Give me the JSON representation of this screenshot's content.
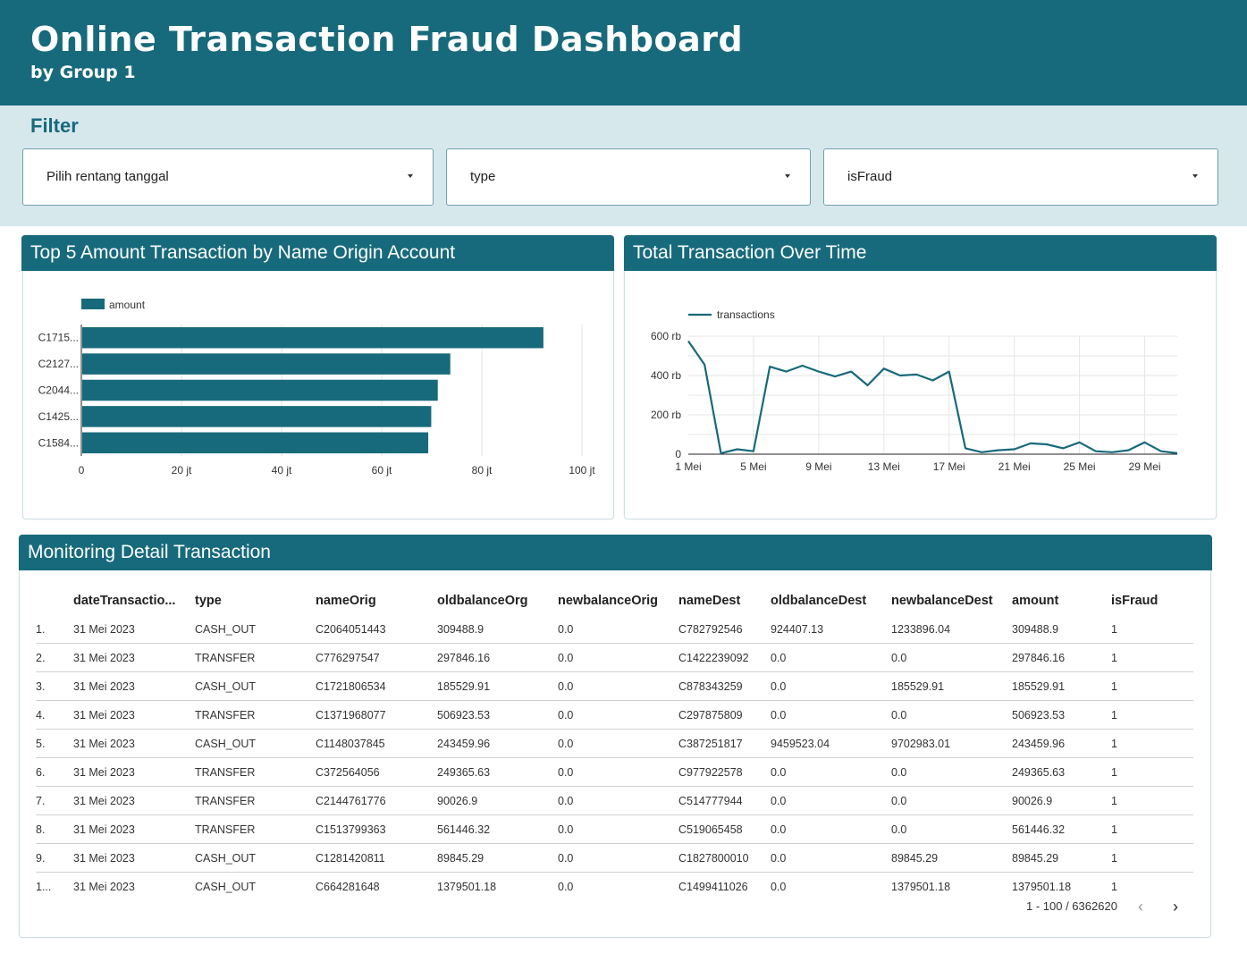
{
  "header": {
    "title": "Online Transaction Fraud Dashboard",
    "subtitle": "by Group 1"
  },
  "filter": {
    "title": "Filter",
    "controls": [
      {
        "label": "Pilih rentang tanggal"
      },
      {
        "label": "type"
      },
      {
        "label": "isFraud"
      }
    ]
  },
  "colors": {
    "primary": "#176a7b",
    "filter_bg": "#d7e8ed"
  },
  "bar_card": {
    "title": "Top 5 Amount Transaction by Name Origin Account"
  },
  "line_card": {
    "title": "Total Transaction Over Time"
  },
  "chart_data": [
    {
      "type": "bar",
      "orientation": "horizontal",
      "categories": [
        "C1715...",
        "C2127...",
        "C2044...",
        "C1425...",
        "C1584..."
      ],
      "series": [
        {
          "name": "amount",
          "values": [
            92300000,
            73700000,
            71200000,
            69900000,
            69300000
          ]
        }
      ],
      "x_ticks": [
        "0",
        "20 jt",
        "40 jt",
        "60 jt",
        "80 jt",
        "100 jt"
      ],
      "xlim": [
        0,
        100000000
      ],
      "legend": "top-left",
      "grid": true
    },
    {
      "type": "line",
      "x": [
        1,
        2,
        3,
        4,
        5,
        6,
        7,
        8,
        9,
        10,
        11,
        12,
        13,
        14,
        15,
        16,
        17,
        18,
        19,
        20,
        21,
        22,
        23,
        24,
        25,
        26,
        27,
        28,
        29,
        30,
        31
      ],
      "x_ticks": [
        "1 Mei",
        "5 Mei",
        "9 Mei",
        "13 Mei",
        "17 Mei",
        "21 Mei",
        "25 Mei",
        "29 Mei"
      ],
      "y_ticks": [
        "0",
        "200 rb",
        "400 rb",
        "600 rb"
      ],
      "ylim": [
        0,
        600000
      ],
      "series": [
        {
          "name": "transactions",
          "values": [
            575000,
            455000,
            5000,
            25000,
            15000,
            445000,
            420000,
            450000,
            420000,
            395000,
            420000,
            350000,
            435000,
            400000,
            405000,
            375000,
            420000,
            30000,
            10000,
            20000,
            25000,
            55000,
            50000,
            30000,
            60000,
            15000,
            10000,
            20000,
            60000,
            15000,
            5000
          ]
        }
      ],
      "legend": "top-left",
      "grid": true
    }
  ],
  "table": {
    "title": "Monitoring Detail Transaction",
    "columns": [
      "dateTransactio...",
      "type",
      "nameOrig",
      "oldbalanceOrg",
      "newbalanceOrig",
      "nameDest",
      "oldbalanceDest",
      "newbalanceDest",
      "amount",
      "isFraud"
    ],
    "rows": [
      [
        "1.",
        "31 Mei 2023",
        "CASH_OUT",
        "C2064051443",
        "309488.9",
        "0.0",
        "C782792546",
        "924407.13",
        "1233896.04",
        "309488.9",
        "1"
      ],
      [
        "2.",
        "31 Mei 2023",
        "TRANSFER",
        "C776297547",
        "297846.16",
        "0.0",
        "C1422239092",
        "0.0",
        "0.0",
        "297846.16",
        "1"
      ],
      [
        "3.",
        "31 Mei 2023",
        "CASH_OUT",
        "C1721806534",
        "185529.91",
        "0.0",
        "C878343259",
        "0.0",
        "185529.91",
        "185529.91",
        "1"
      ],
      [
        "4.",
        "31 Mei 2023",
        "TRANSFER",
        "C1371968077",
        "506923.53",
        "0.0",
        "C297875809",
        "0.0",
        "0.0",
        "506923.53",
        "1"
      ],
      [
        "5.",
        "31 Mei 2023",
        "CASH_OUT",
        "C1148037845",
        "243459.96",
        "0.0",
        "C387251817",
        "9459523.04",
        "9702983.01",
        "243459.96",
        "1"
      ],
      [
        "6.",
        "31 Mei 2023",
        "TRANSFER",
        "C372564056",
        "249365.63",
        "0.0",
        "C977922578",
        "0.0",
        "0.0",
        "249365.63",
        "1"
      ],
      [
        "7.",
        "31 Mei 2023",
        "TRANSFER",
        "C2144761776",
        "90026.9",
        "0.0",
        "C514777944",
        "0.0",
        "0.0",
        "90026.9",
        "1"
      ],
      [
        "8.",
        "31 Mei 2023",
        "TRANSFER",
        "C1513799363",
        "561446.32",
        "0.0",
        "C519065458",
        "0.0",
        "0.0",
        "561446.32",
        "1"
      ],
      [
        "9.",
        "31 Mei 2023",
        "CASH_OUT",
        "C1281420811",
        "89845.29",
        "0.0",
        "C1827800010",
        "0.0",
        "89845.29",
        "89845.29",
        "1"
      ],
      [
        "1...",
        "31 Mei 2023",
        "CASH_OUT",
        "C664281648",
        "1379501.18",
        "0.0",
        "C1499411026",
        "0.0",
        "1379501.18",
        "1379501.18",
        "1"
      ]
    ],
    "pagination": {
      "range": "1 - 100 / 6362620",
      "prev_icon": "chevron-left-icon",
      "next_icon": "chevron-right-icon"
    }
  }
}
